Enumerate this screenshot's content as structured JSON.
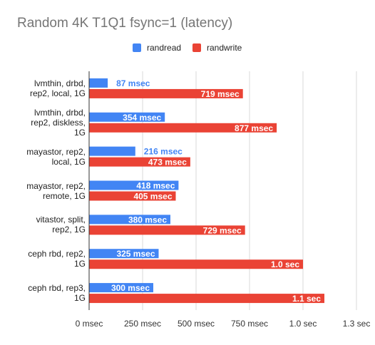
{
  "title": "Random 4K T1Q1 fsync=1 (latency)",
  "legend": [
    {
      "name": "randread",
      "color": "#4285f4"
    },
    {
      "name": "randwrite",
      "color": "#ea4335"
    }
  ],
  "chart_data": {
    "type": "bar",
    "orientation": "horizontal",
    "title": "Random 4K T1Q1 fsync=1 (latency)",
    "categories": [
      [
        "lvmthin, drbd,",
        "rep2, local, 1G"
      ],
      [
        "lvmthin, drbd,",
        "rep2, diskless,",
        "1G"
      ],
      [
        "mayastor, rep2,",
        "local, 1G"
      ],
      [
        "mayastor, rep2,",
        "remote, 1G"
      ],
      [
        "vitastor, split,",
        "rep2, 1G"
      ],
      [
        "ceph rbd, rep2,",
        "1G"
      ],
      [
        "ceph rbd, rep3,",
        "1G"
      ]
    ],
    "series": [
      {
        "name": "randread",
        "color": "#4285f4",
        "values": [
          87,
          354,
          216,
          418,
          380,
          325,
          300
        ],
        "labels": [
          "87 msec",
          "354 msec",
          "216 msec",
          "418 msec",
          "380 msec",
          "325 msec",
          "300 msec"
        ]
      },
      {
        "name": "randwrite",
        "color": "#ea4335",
        "values": [
          719,
          877,
          473,
          405,
          729,
          1000,
          1100
        ],
        "labels": [
          "719 msec",
          "877 msec",
          "473 msec",
          "405 msec",
          "729 msec",
          "1.0 sec",
          "1.1 sec"
        ]
      }
    ],
    "x_ticks": [
      "0 msec",
      "250 msec",
      "500 msec",
      "750 msec",
      "1.0 sec",
      "1.3 sec"
    ],
    "xlim": [
      0,
      1250
    ],
    "grid": true,
    "legend_position": "top"
  }
}
